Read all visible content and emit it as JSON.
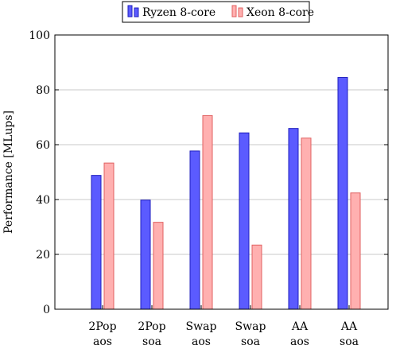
{
  "chart_data": {
    "type": "bar",
    "title": "",
    "xlabel": "",
    "ylabel": "Performance [MLups]",
    "ylim": [
      0,
      100
    ],
    "yticks": [
      0,
      20,
      40,
      60,
      80,
      100
    ],
    "grid": "horizontal",
    "legend_position": "top-center",
    "categories": [
      [
        "2Pop",
        "aos"
      ],
      [
        "2Pop",
        "soa"
      ],
      [
        "Swap",
        "aos"
      ],
      [
        "Swap",
        "soa"
      ],
      [
        "AA",
        "aos"
      ],
      [
        "AA",
        "soa"
      ]
    ],
    "series": [
      {
        "name": "Ryzen 8-core",
        "values": [
          48.8,
          39.8,
          57.7,
          64.3,
          65.9,
          84.5
        ],
        "color": "#5b5bff",
        "stroke": "#1f1fbf"
      },
      {
        "name": "Xeon 8-core",
        "values": [
          53.3,
          31.7,
          70.6,
          23.4,
          62.4,
          42.4
        ],
        "color": "#ffb0b0",
        "stroke": "#e06060"
      }
    ]
  }
}
